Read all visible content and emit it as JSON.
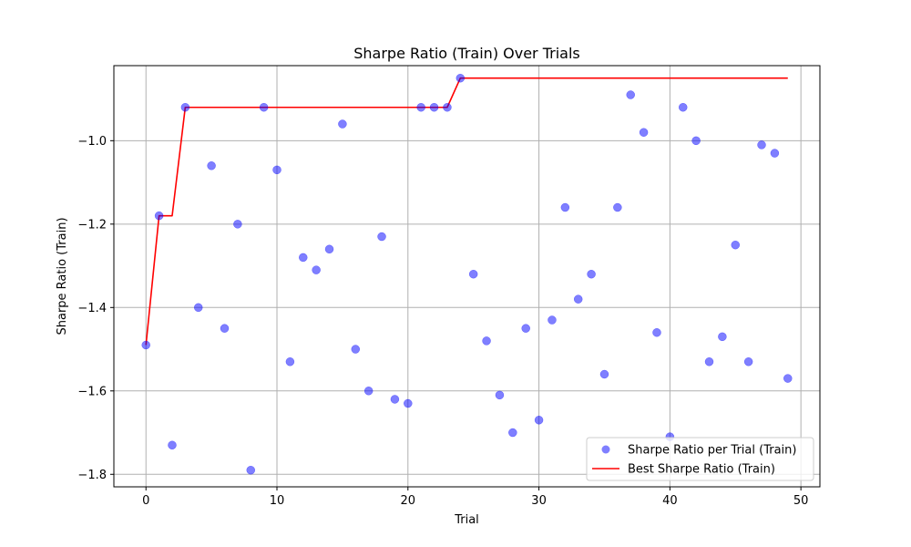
{
  "chart_data": {
    "type": "scatter",
    "title": "Sharpe Ratio (Train) Over Trials",
    "xlabel": "Trial",
    "ylabel": "Sharpe Ratio (Train)",
    "xlim": [
      -2.45,
      51.45
    ],
    "ylim": [
      -1.83,
      -0.82
    ],
    "xticks": [
      0,
      10,
      20,
      30,
      40,
      50
    ],
    "yticks": [
      -1.8,
      -1.6,
      -1.4,
      -1.2,
      -1.0
    ],
    "xtick_labels": [
      "0",
      "10",
      "20",
      "30",
      "40",
      "50"
    ],
    "ytick_labels": [
      "−1.8",
      "−1.6",
      "−1.4",
      "−1.2",
      "−1.0"
    ],
    "grid": true,
    "legend_position": "lower-right",
    "series": [
      {
        "name": "Sharpe Ratio per Trial (Train)",
        "kind": "scatter",
        "color": "#0000ff",
        "opacity": 0.5,
        "x": [
          0,
          1,
          2,
          3,
          4,
          5,
          6,
          7,
          8,
          9,
          10,
          11,
          12,
          13,
          14,
          15,
          16,
          17,
          18,
          19,
          20,
          21,
          22,
          23,
          24,
          25,
          26,
          27,
          28,
          29,
          30,
          31,
          32,
          33,
          34,
          35,
          36,
          37,
          38,
          39,
          40,
          41,
          42,
          43,
          44,
          45,
          46,
          47,
          48,
          49
        ],
        "y": [
          -1.49,
          -1.18,
          -1.73,
          -0.92,
          -1.4,
          -1.06,
          -1.45,
          -1.2,
          -1.79,
          -0.92,
          -1.07,
          -1.53,
          -1.28,
          -1.31,
          -1.26,
          -0.96,
          -1.5,
          -1.6,
          -1.23,
          -1.62,
          -1.63,
          -0.92,
          -0.92,
          -0.92,
          -0.85,
          -1.32,
          -1.48,
          -1.61,
          -1.7,
          -1.45,
          -1.67,
          -1.43,
          -1.16,
          -1.38,
          -1.32,
          -1.56,
          -1.16,
          -0.89,
          -0.98,
          -1.46,
          -1.71,
          -0.92,
          -1.0,
          -1.53,
          -1.47,
          -1.25,
          -1.53,
          -1.01,
          -1.03,
          -1.57
        ]
      },
      {
        "name": "Best Sharpe Ratio (Train)",
        "kind": "line",
        "color": "#ff0000",
        "x": [
          0,
          1,
          2,
          3,
          4,
          5,
          6,
          7,
          8,
          9,
          10,
          11,
          12,
          13,
          14,
          15,
          16,
          17,
          18,
          19,
          20,
          21,
          22,
          23,
          24,
          25,
          26,
          27,
          28,
          29,
          30,
          31,
          32,
          33,
          34,
          35,
          36,
          37,
          38,
          39,
          40,
          41,
          42,
          43,
          44,
          45,
          46,
          47,
          48,
          49
        ],
        "y": [
          -1.49,
          -1.18,
          -1.18,
          -0.92,
          -0.92,
          -0.92,
          -0.92,
          -0.92,
          -0.92,
          -0.92,
          -0.92,
          -0.92,
          -0.92,
          -0.92,
          -0.92,
          -0.92,
          -0.92,
          -0.92,
          -0.92,
          -0.92,
          -0.92,
          -0.92,
          -0.92,
          -0.92,
          -0.85,
          -0.85,
          -0.85,
          -0.85,
          -0.85,
          -0.85,
          -0.85,
          -0.85,
          -0.85,
          -0.85,
          -0.85,
          -0.85,
          -0.85,
          -0.85,
          -0.85,
          -0.85,
          -0.85,
          -0.85,
          -0.85,
          -0.85,
          -0.85,
          -0.85,
          -0.85,
          -0.85,
          -0.85,
          -0.85
        ]
      }
    ]
  }
}
